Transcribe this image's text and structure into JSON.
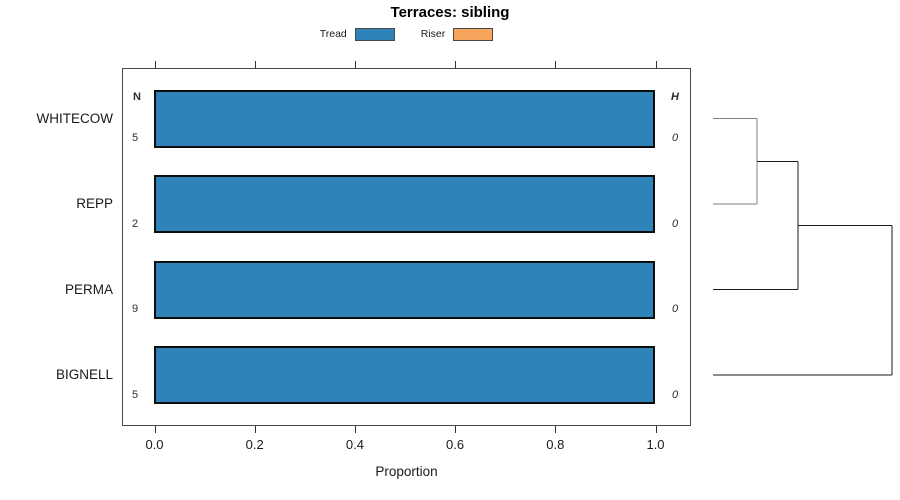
{
  "chart_data": {
    "type": "bar",
    "orientation": "horizontal",
    "stacked": true,
    "title": "Terraces: sibling",
    "xlabel": "Proportion",
    "xlim": [
      0.0,
      1.0
    ],
    "x_ticks": [
      "0.0",
      "0.2",
      "0.4",
      "0.6",
      "0.8",
      "1.0"
    ],
    "grid": false,
    "legend_position": "top-center",
    "categories": [
      "WHITECOW",
      "REPP",
      "PERMA",
      "BIGNELL"
    ],
    "series": [
      {
        "name": "Tread",
        "color": "#2E83B9",
        "values": [
          1.0,
          1.0,
          1.0,
          1.0
        ]
      },
      {
        "name": "Riser",
        "color": "#F9A45C",
        "values": [
          0.0,
          0.0,
          0.0,
          0.0
        ]
      }
    ],
    "annotations": {
      "n_header": "N",
      "n_values": [
        "5",
        "2",
        "9",
        "5"
      ],
      "h_header": "H",
      "h_values": [
        "0",
        "0",
        "0",
        "0"
      ]
    },
    "dendrogram": {
      "side": "right",
      "leaves": [
        "WHITECOW",
        "REPP",
        "PERMA",
        "BIGNELL"
      ],
      "merges": [
        {
          "a": "leaf:0",
          "b": "leaf:1",
          "height_frac": 0.246,
          "color": "#808080"
        },
        {
          "a": "merge:0",
          "b": "leaf:2",
          "height_frac": 0.475,
          "color": "#1a1a1a"
        },
        {
          "a": "merge:1",
          "b": "leaf:3",
          "height_frac": 1.0,
          "color": "#1a1a1a"
        }
      ]
    }
  }
}
